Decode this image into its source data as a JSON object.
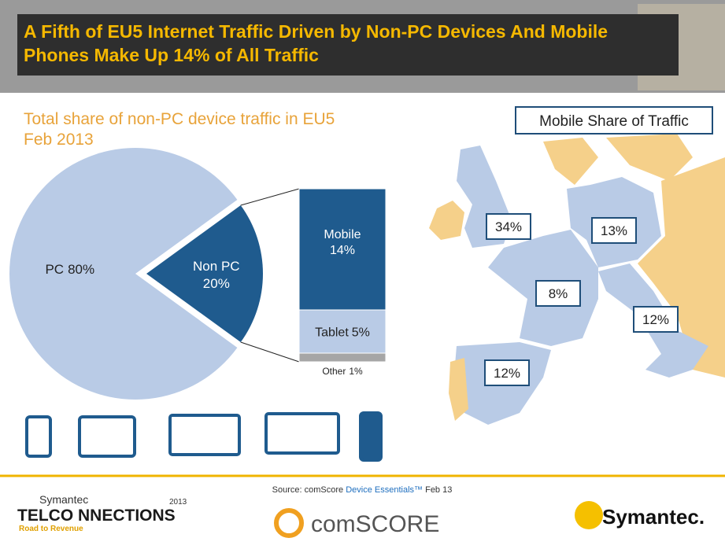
{
  "header": {
    "title": "A Fifth of EU5 Internet Traffic Driven by Non-PC Devices And Mobile Phones Make Up 14% of All Traffic"
  },
  "chart_data": {
    "type": "pie",
    "title": "Total share of non-PC device traffic in EU5",
    "subtitle": "Feb 2013",
    "categories": [
      "PC",
      "Non PC"
    ],
    "values": [
      80,
      20
    ],
    "value_labels": [
      "80%",
      "20%"
    ],
    "colors": [
      "#b9cbe6",
      "#1f5b8e"
    ],
    "breakdown": {
      "type": "stacked-bar",
      "categories": [
        "Mobile",
        "Tablet",
        "Other"
      ],
      "values": [
        14,
        5,
        1
      ],
      "value_labels": [
        "14%",
        "5%",
        "1%"
      ],
      "colors": [
        "#1f5b8e",
        "#b9cbe6",
        "#a6a6a6"
      ]
    }
  },
  "map": {
    "title": "Mobile Share of Traffic",
    "values": [
      34,
      13,
      8,
      12,
      12
    ],
    "value_labels": [
      "34%",
      "13%",
      "8%",
      "12%",
      "12%"
    ]
  },
  "footer": {
    "source_prefix": "Source: comScore",
    "source_link": "Device Essentials™",
    "source_suffix": "Feb 13",
    "event_brand": "Symantec",
    "event_name": "TELCO NNECTIONS",
    "event_year": "2013",
    "event_tagline": "Road to Revenue",
    "partner": "comSCORE",
    "sponsor": "Symantec."
  }
}
